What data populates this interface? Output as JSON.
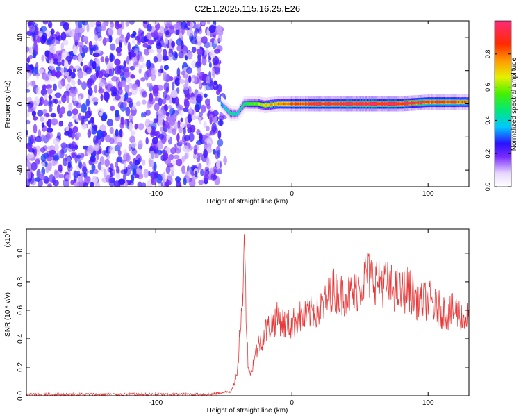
{
  "title": "C2E1.2025.115.16.25.E26",
  "chart_data": [
    {
      "type": "heatmap",
      "xlabel": "Height of straight line (km)",
      "ylabel": "Frequency (Hz)",
      "xlim": [
        -195,
        130
      ],
      "ylim": [
        -50,
        50
      ],
      "x_ticks": [
        -100,
        0,
        100
      ],
      "y_ticks": [
        -40,
        -20,
        0,
        20,
        40
      ],
      "colorbar": {
        "label": "Normalized spectral amplitude",
        "ticks": [
          0.0,
          0.2,
          0.4,
          0.6,
          0.8
        ],
        "range": [
          0,
          1
        ]
      },
      "noise_region_x": [
        -195,
        -52
      ],
      "signal_band": {
        "x": [
          -52,
          -45,
          -40,
          -35,
          -30,
          -25,
          -20,
          -10,
          0,
          20,
          40,
          60,
          80,
          100,
          130
        ],
        "center_hz": [
          0,
          -6,
          -6,
          0,
          0,
          0,
          -1,
          0,
          0,
          0,
          0,
          0,
          0,
          1,
          1
        ],
        "amplitude": [
          0.2,
          0.35,
          0.3,
          0.4,
          0.45,
          0.5,
          0.6,
          0.7,
          0.8,
          0.9,
          0.95,
          1.0,
          0.95,
          0.85,
          0.75
        ]
      },
      "grid": false
    },
    {
      "type": "line",
      "xlabel": "Height of straight line (km)",
      "ylabel": "SNR (10 * v/v)",
      "y_multiplier": "(x10",
      "y_multiplier_exp": "4",
      "y_multiplier_close": ")",
      "xlim": [
        -195,
        130
      ],
      "ylim": [
        0,
        1.17
      ],
      "x_ticks": [
        -100,
        0,
        100
      ],
      "y_ticks": [
        0.0,
        0.2,
        0.4,
        0.6,
        0.8,
        1.0
      ],
      "series": [
        {
          "color": "#e83a3a",
          "x": [
            -195,
            -150,
            -100,
            -60,
            -45,
            -40,
            -38,
            -36,
            -35,
            -34,
            -33,
            -32,
            -30,
            -28,
            -25,
            -22,
            -20,
            -15,
            -10,
            -5,
            0,
            5,
            10,
            15,
            20,
            25,
            30,
            35,
            40,
            45,
            50,
            55,
            60,
            65,
            70,
            75,
            80,
            85,
            90,
            95,
            100,
            105,
            110,
            115,
            120,
            125,
            130
          ],
          "y": [
            0.01,
            0.01,
            0.01,
            0.01,
            0.03,
            0.15,
            0.5,
            0.65,
            1.16,
            0.8,
            0.4,
            0.2,
            0.15,
            0.25,
            0.35,
            0.4,
            0.45,
            0.5,
            0.55,
            0.5,
            0.5,
            0.55,
            0.55,
            0.6,
            0.6,
            0.65,
            0.75,
            0.7,
            0.72,
            0.7,
            0.78,
            0.85,
            0.82,
            0.8,
            0.78,
            0.75,
            0.72,
            0.75,
            0.7,
            0.65,
            0.68,
            0.62,
            0.6,
            0.58,
            0.6,
            0.55,
            0.55
          ]
        }
      ],
      "grid": false
    }
  ]
}
